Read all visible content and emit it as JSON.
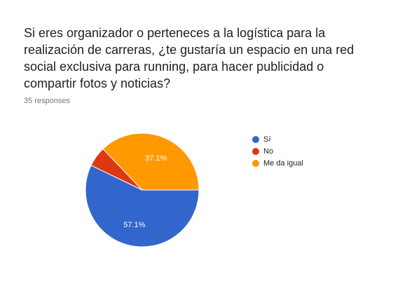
{
  "question": {
    "line1": "Si eres organizador o perteneces a la logística para la",
    "line2": "realización de carreras, ¿te gustaría un espacio en una red",
    "line3": "social exclusiva para running, para hacer publicidad o",
    "line4": "compartir fotos y noticias?"
  },
  "responses_count": "35 responses",
  "chart_data": {
    "type": "pie",
    "categories": [
      "Sí",
      "No",
      "Me da igual"
    ],
    "values": [
      57.1,
      5.7,
      37.1
    ],
    "data_labels": [
      "57.1%",
      "",
      "37.1%"
    ],
    "colors": [
      "#3366cc",
      "#dc3912",
      "#ff9900"
    ],
    "legend_position": "right"
  },
  "legend": {
    "items": [
      {
        "label": "Sí",
        "color": "#3366cc"
      },
      {
        "label": "No",
        "color": "#dc3912"
      },
      {
        "label": "Me da igual",
        "color": "#ff9900"
      }
    ]
  }
}
